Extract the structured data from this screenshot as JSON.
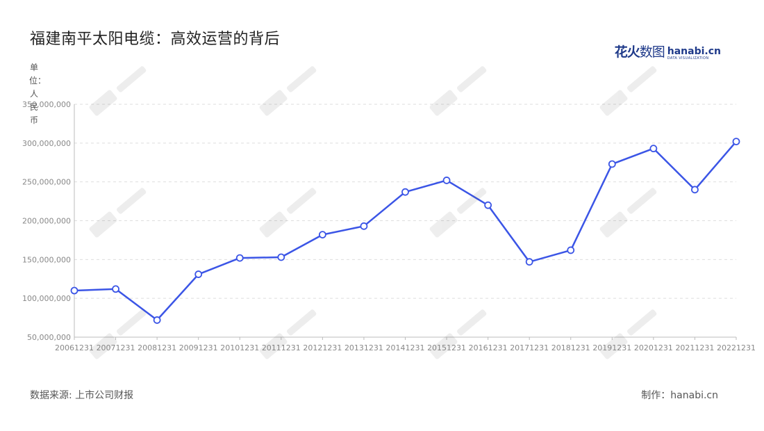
{
  "title": "福建南平太阳电缆：高效运营的背后",
  "unit_label": "单位：人民币",
  "source": "数据来源: 上市公司财报",
  "maker": "制作：hanabi.cn",
  "logo": {
    "cn_bold": "花火",
    "cn_thin": "数图",
    "en": "hanabi.cn",
    "en_sub": "DATA VISUALIZATION"
  },
  "colors": {
    "line": "#3b55e6",
    "grid": "#dddddd",
    "axis": "#bbbbbb"
  },
  "chart_data": {
    "type": "line",
    "x": [
      "20061231",
      "20071231",
      "20081231",
      "20091231",
      "20101231",
      "20111231",
      "20121231",
      "20131231",
      "20141231",
      "20151231",
      "20161231",
      "20171231",
      "20181231",
      "20191231",
      "20201231",
      "20211231",
      "20221231"
    ],
    "y_ticks": [
      "50,000,000",
      "100,000,000",
      "150,000,000",
      "200,000,000",
      "250,000,000",
      "300,000,000",
      "350,000,000"
    ],
    "ylim": [
      50000000,
      350000000
    ],
    "series": [
      {
        "values": [
          110000000,
          112000000,
          72000000,
          131000000,
          152000000,
          153000000,
          182000000,
          193000000,
          237000000,
          252000000,
          220000000,
          147000000,
          162000000,
          273000000,
          293000000,
          240000000,
          302000000
        ]
      }
    ],
    "grid": "horizontal-dashed",
    "legend": "none"
  }
}
